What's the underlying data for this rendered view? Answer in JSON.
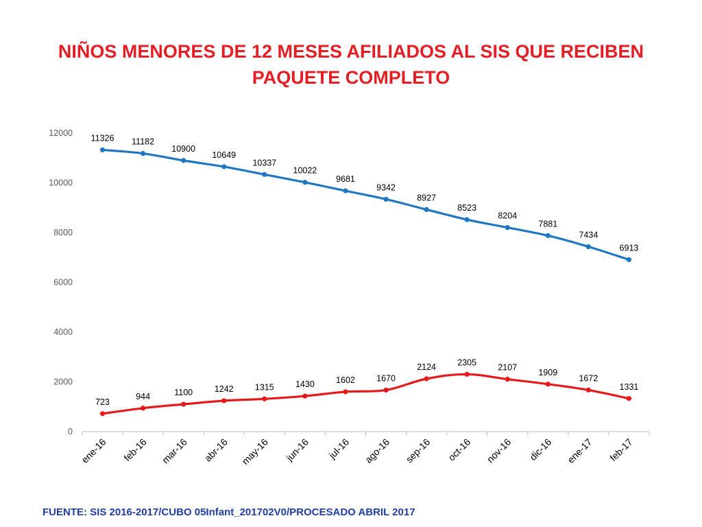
{
  "slide": {
    "title_lines": [
      "NIÑOS MENORES DE 12 MESES AFILIADOS AL SIS QUE RECIBEN",
      "PAQUETE COMPLETO"
    ],
    "source": "FUENTE: SIS 2016-2017/CUBO 05Infant_201702V0/PROCESADO ABRIL 2017"
  },
  "chart_data": {
    "type": "line",
    "title": "NIÑOS MENORES DE 12 MESES AFILIADOS AL SIS QUE RECIBEN PAQUETE COMPLETO",
    "categories": [
      "ene-16",
      "feb-16",
      "mar-16",
      "abr-16",
      "may-16",
      "jun-16",
      "jul-16",
      "ago-16",
      "sep-16",
      "oct-16",
      "nov-16",
      "dic-16",
      "ene-17",
      "feb-17"
    ],
    "series": [
      {
        "color": "#1f77c4",
        "values": [
          11326,
          11182,
          10900,
          10649,
          10337,
          10022,
          9681,
          9342,
          8927,
          8523,
          8204,
          7881,
          7434,
          6913
        ]
      },
      {
        "color": "#e41a1c",
        "values": [
          723,
          944,
          1100,
          1242,
          1315,
          1430,
          1602,
          1670,
          2124,
          2305,
          2107,
          1909,
          1672,
          1331
        ]
      }
    ],
    "ylim": [
      0,
      12000
    ],
    "yticks": [
      0,
      2000,
      4000,
      6000,
      8000,
      10000,
      12000
    ],
    "xlabel": "",
    "ylabel": "",
    "grid": false,
    "legend": "none",
    "smooth": true,
    "data_labels": true
  }
}
